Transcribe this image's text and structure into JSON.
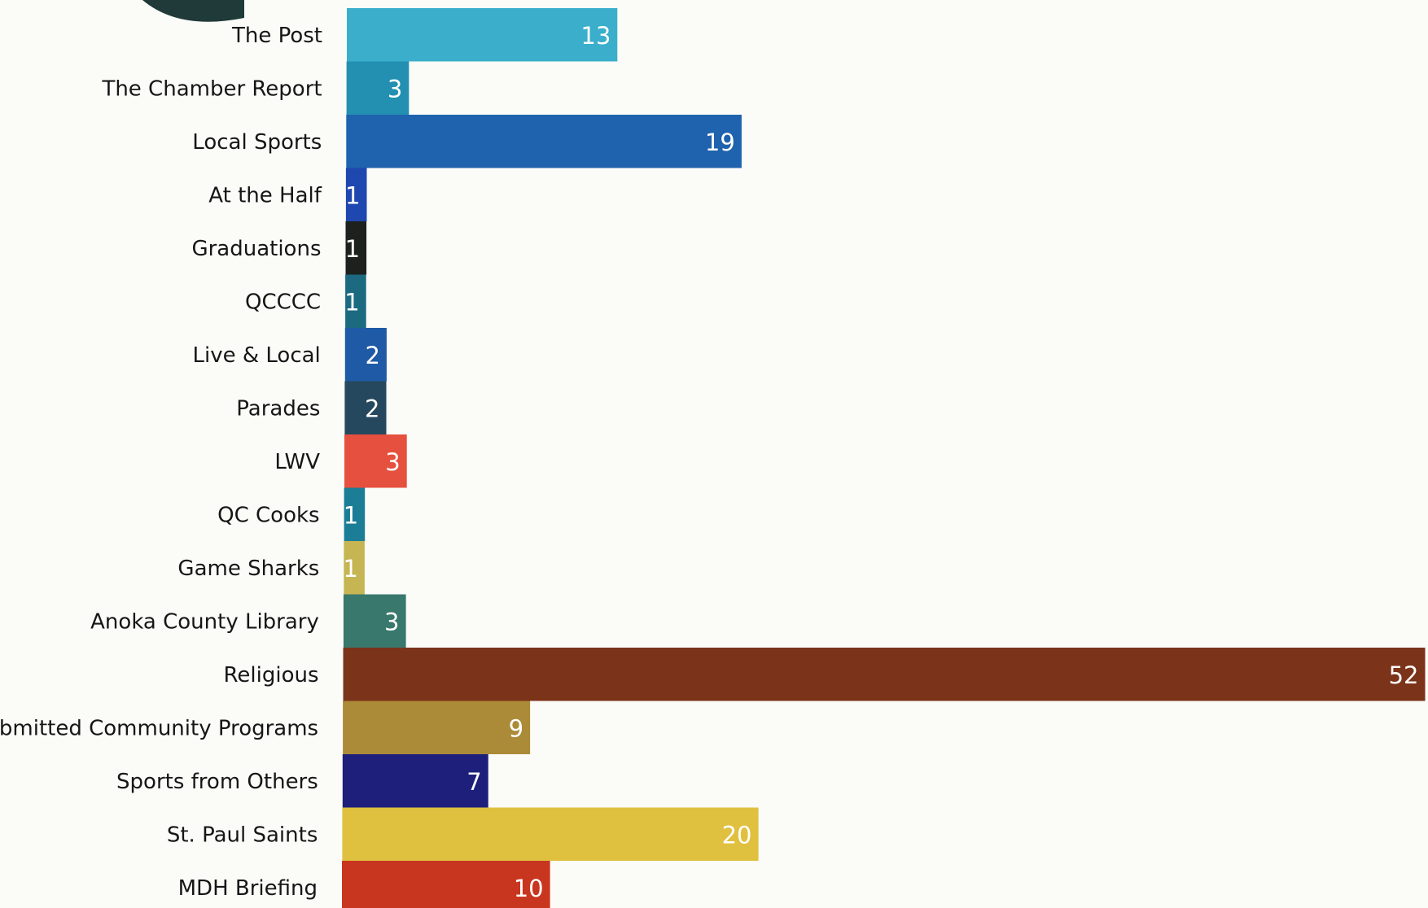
{
  "chart_data": {
    "type": "bar",
    "orientation": "horizontal",
    "title": "",
    "xlabel": "",
    "ylabel": "",
    "xlim": [
      0,
      52
    ],
    "grid": false,
    "legend": "none",
    "categories": [
      "The Post",
      "The Chamber Report",
      "Local Sports",
      "At the Half",
      "Graduations",
      "QCCCC",
      "Live & Local",
      "Parades",
      "LWV",
      "QC Cooks",
      "Game Sharks",
      "Anoka County Library",
      "Religious",
      "Submitted Community Programs",
      "Sports from Others",
      "St. Paul Saints",
      "MDH Briefing"
    ],
    "values": [
      13,
      3,
      19,
      1,
      1,
      1,
      2,
      2,
      3,
      1,
      1,
      3,
      52,
      9,
      7,
      20,
      10
    ],
    "value_labels": [
      "13",
      "3",
      "19",
      "1",
      "1",
      "1",
      "2",
      "2",
      "3",
      "1",
      "1",
      "3",
      "52",
      "9",
      "7",
      "20",
      "10"
    ],
    "colors": [
      "#3aaecb",
      "#2390b2",
      "#1f62ad",
      "#1f47b0",
      "#1c211d",
      "#1b6a80",
      "#1e5aa6",
      "#26485e",
      "#e6503e",
      "#1c7d97",
      "#c5b553",
      "#39786c",
      "#7b3319",
      "#ab8a38",
      "#1d1f7b",
      "#e0c03f",
      "#c8361f"
    ]
  },
  "logo": {
    "color": "#1f3a38"
  }
}
